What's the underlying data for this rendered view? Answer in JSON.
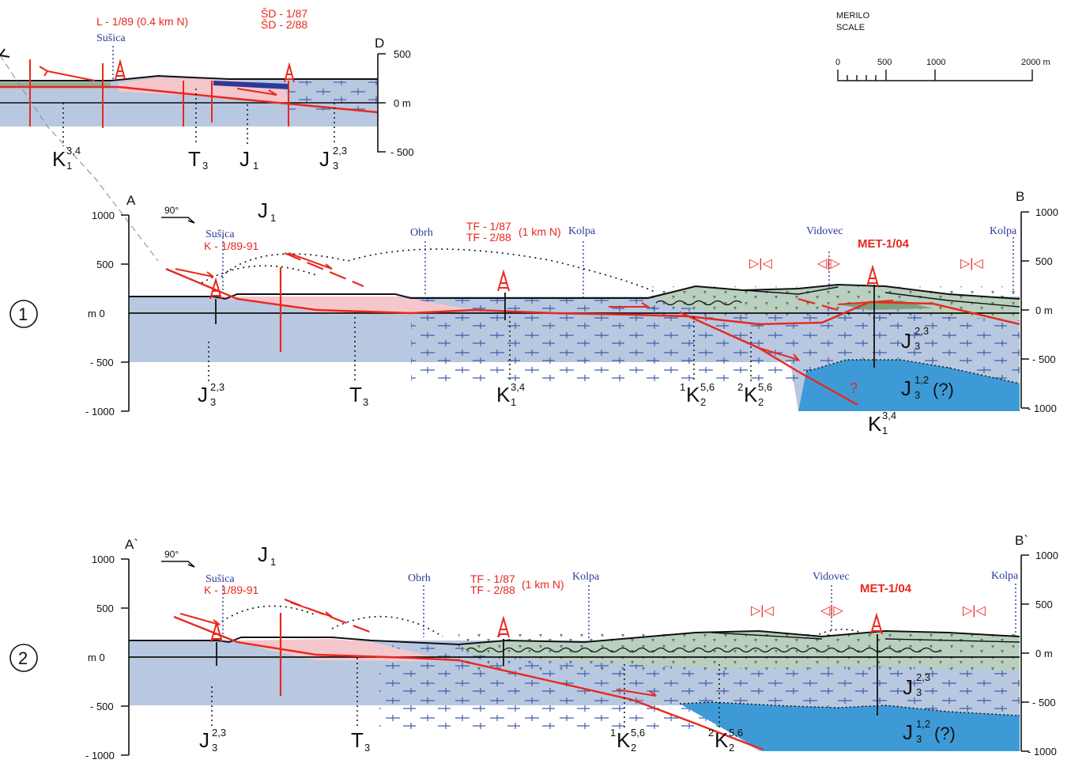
{
  "scale": {
    "title": "MERILO",
    "subtitle": "SCALE",
    "ticks": [
      "0",
      "500",
      "1000",
      "2000 m"
    ]
  },
  "section_top": {
    "end_label": "D",
    "wells": [
      "L - 1/89  (0.4 km N)",
      "ŠD - 1/87",
      "ŠD - 2/88"
    ],
    "place": "Sušica",
    "axis": [
      "500",
      "0 m",
      "- 500"
    ],
    "units": [
      {
        "base": "K",
        "sub": "1",
        "sup": "3,4"
      },
      {
        "base": "T",
        "sub": "3",
        "sup": ""
      },
      {
        "base": "J",
        "sub": "1",
        "sup": ""
      },
      {
        "base": "J",
        "sub": "3",
        "sup": "2,3"
      }
    ]
  },
  "section_1": {
    "number": "1",
    "start_label": "A",
    "end_label": "B",
    "azimuth": "90°",
    "places": [
      "Sušica",
      "Obrh",
      "Kolpa",
      "Vidovec",
      "Kolpa"
    ],
    "wells": [
      "K - 1/89-91",
      "TF - 1/87",
      "TF - 2/88",
      "(1 km N)",
      "MET-1/04"
    ],
    "question_mark": "?",
    "left_axis": [
      "1000",
      "500",
      "m  0",
      "- 500",
      "- 1000"
    ],
    "right_axis": [
      "1000",
      "500",
      "0 m",
      "- 500",
      "- 1000"
    ],
    "units": {
      "j1": {
        "base": "J",
        "sub": "1",
        "sup": ""
      },
      "j3_23_left": {
        "base": "J",
        "sub": "3",
        "sup": "2,3"
      },
      "t3": {
        "base": "T",
        "sub": "3",
        "sup": ""
      },
      "k1_34": {
        "base": "K",
        "sub": "1",
        "sup": "3,4"
      },
      "k2_1": {
        "pre": "1",
        "base": "K",
        "sub": "2",
        "sup": "5,6"
      },
      "k2_2": {
        "pre": "2",
        "base": "K",
        "sub": "2",
        "sup": "5,6"
      },
      "j3_23_right": {
        "base": "J",
        "sub": "3",
        "sup": "2,3"
      },
      "j3_12": {
        "base": "J",
        "sub": "3",
        "sup": "1,2",
        "post": "(?)"
      },
      "k1_34_right": {
        "base": "K",
        "sub": "1",
        "sup": "3,4"
      }
    }
  },
  "section_2": {
    "number": "2",
    "start_label": "A`",
    "end_label": "B`",
    "azimuth": "90°",
    "places": [
      "Sušica",
      "Obrh",
      "Kolpa",
      "Vidovec",
      "Kolpa"
    ],
    "wells": [
      "K - 1/89-91",
      "TF - 1/87",
      "TF - 2/88",
      "(1 km N)",
      "MET-1/04"
    ],
    "left_axis": [
      "1000",
      "500",
      "m  0",
      "- 500",
      "- 1000"
    ],
    "right_axis": [
      "1000",
      "500",
      "0 m",
      "- 500",
      "- 1000"
    ],
    "units": {
      "j1": {
        "base": "J",
        "sub": "1",
        "sup": ""
      },
      "j3_23_left": {
        "base": "J",
        "sub": "3",
        "sup": "2,3"
      },
      "t3": {
        "base": "T",
        "sub": "3",
        "sup": ""
      },
      "k2_1": {
        "pre": "1",
        "base": "K",
        "sub": "2",
        "sup": "5,6"
      },
      "k2_2": {
        "pre": "2",
        "base": "K",
        "sub": "2",
        "sup": "5,6"
      },
      "j3_23_right": {
        "base": "J",
        "sub": "3",
        "sup": "2,3"
      },
      "j3_12": {
        "base": "J",
        "sub": "3",
        "sup": "1,2",
        "post": "(?)"
      }
    }
  },
  "colors": {
    "fault": "#e8281e",
    "limestone": "#b8c8e0",
    "deep_unit": "#3e9ad6",
    "pink_unit": "#f5c6cc",
    "green_unit": "#b9cfbf",
    "place_text": "#2b3a9a"
  }
}
